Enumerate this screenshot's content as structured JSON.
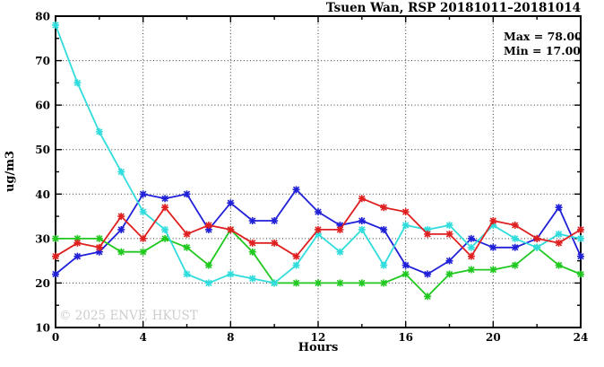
{
  "chart_data": {
    "type": "line",
    "title": "Tsuen Wan, RSP 20181011–20181014",
    "xlabel": "Hours",
    "ylabel": "ug/m3",
    "watermark": "© 2025 ENVF, HKUST",
    "annotations": {
      "max": "Max = 78.00",
      "min": "Min = 17.00"
    },
    "xlim": [
      0,
      24
    ],
    "ylim": [
      10,
      80
    ],
    "xticks_major": [
      0,
      4,
      8,
      12,
      16,
      20,
      24
    ],
    "xticks_minor": [
      2,
      6,
      10,
      14,
      18,
      22
    ],
    "yticks_major": [
      10,
      20,
      30,
      40,
      50,
      60,
      70,
      80
    ],
    "yticks_minor": [
      15,
      25,
      35,
      45,
      55,
      65,
      75
    ],
    "grid_x": [
      4,
      8,
      12,
      16,
      20
    ],
    "grid_y": [
      20,
      30,
      40,
      50,
      60,
      70
    ],
    "grid_style": "dotted",
    "legend_position": "none",
    "marker": "asterisk",
    "x": [
      0,
      1,
      2,
      3,
      4,
      5,
      6,
      7,
      8,
      9,
      10,
      11,
      12,
      13,
      14,
      15,
      16,
      17,
      18,
      19,
      20,
      21,
      22,
      23,
      24
    ],
    "series": [
      {
        "name": "series-blue",
        "color": "#2020d8",
        "values": [
          22,
          26,
          27,
          32,
          40,
          39,
          40,
          32,
          38,
          34,
          34,
          41,
          36,
          33,
          34,
          32,
          24,
          22,
          25,
          30,
          28,
          28,
          30,
          37,
          26
        ]
      },
      {
        "name": "series-green",
        "color": "#20c820",
        "values": [
          30,
          30,
          30,
          27,
          27,
          30,
          28,
          24,
          32,
          27,
          20,
          20,
          20,
          20,
          20,
          20,
          22,
          17,
          22,
          23,
          23,
          24,
          28,
          24,
          22
        ]
      },
      {
        "name": "series-cyan",
        "color": "#30dcdc",
        "values": [
          78,
          65,
          54,
          45,
          36,
          32,
          22,
          20,
          22,
          21,
          20,
          24,
          31,
          27,
          32,
          24,
          33,
          32,
          33,
          28,
          33,
          30,
          28,
          31,
          30
        ]
      },
      {
        "name": "series-red",
        "color": "#e02020",
        "values": [
          26,
          29,
          28,
          35,
          30,
          37,
          31,
          33,
          32,
          29,
          29,
          26,
          32,
          32,
          39,
          37,
          36,
          31,
          31,
          26,
          34,
          33,
          30,
          29,
          32
        ]
      }
    ]
  }
}
